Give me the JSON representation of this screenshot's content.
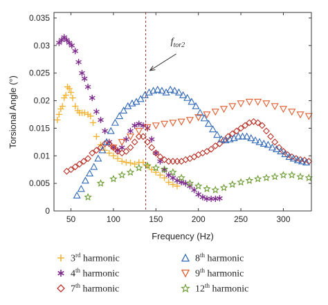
{
  "chart_data": {
    "type": "scatter",
    "xlabel": "Frequency (Hz)",
    "ylabel": "Torsional Angle (°)",
    "xlim": [
      30,
      333
    ],
    "ylim": [
      0,
      0.036
    ],
    "xticks": [
      "50",
      "100",
      "150",
      "200",
      "250",
      "300"
    ],
    "yticks": [
      "0",
      "0.005",
      "0.01",
      "0.015",
      "0.02",
      "0.025",
      "0.03",
      "0.035"
    ],
    "grid": false,
    "annotation": {
      "text": "f",
      "subscript": "tor2",
      "x": 138
    },
    "legend_position": "below",
    "series": [
      {
        "order": "3",
        "suffix": "rd",
        "label_rest": " harmonic",
        "marker": "plus",
        "color": "#f2b233",
        "points": [
          [
            34,
            0.0165
          ],
          [
            36,
            0.0175
          ],
          [
            38,
            0.0185
          ],
          [
            40,
            0.019
          ],
          [
            42,
            0.0205
          ],
          [
            44,
            0.021
          ],
          [
            46,
            0.0225
          ],
          [
            48,
            0.0222
          ],
          [
            50,
            0.0215
          ],
          [
            52,
            0.0205
          ],
          [
            55,
            0.019
          ],
          [
            58,
            0.0182
          ],
          [
            60,
            0.0178
          ],
          [
            63,
            0.0178
          ],
          [
            66,
            0.0178
          ],
          [
            70,
            0.0175
          ],
          [
            73,
            0.0172
          ],
          [
            76,
            0.016
          ],
          [
            80,
            0.0135
          ],
          [
            85,
            0.012
          ],
          [
            90,
            0.011
          ],
          [
            95,
            0.0105
          ],
          [
            100,
            0.01
          ],
          [
            105,
            0.0095
          ],
          [
            110,
            0.009
          ],
          [
            115,
            0.0088
          ],
          [
            120,
            0.0087
          ],
          [
            125,
            0.0085
          ],
          [
            130,
            0.0088
          ],
          [
            135,
            0.0088
          ],
          [
            140,
            0.0082
          ],
          [
            145,
            0.0075
          ],
          [
            150,
            0.007
          ],
          [
            155,
            0.0065
          ],
          [
            160,
            0.006
          ],
          [
            165,
            0.0052
          ],
          [
            170,
            0.0048
          ],
          [
            175,
            0.0045
          ]
        ]
      },
      {
        "order": "4",
        "suffix": "th",
        "label_rest": " harmonic",
        "marker": "asterisk",
        "color": "#7d2b8b",
        "points": [
          [
            36,
            0.0305
          ],
          [
            39,
            0.031
          ],
          [
            42,
            0.0315
          ],
          [
            45,
            0.031
          ],
          [
            48,
            0.0305
          ],
          [
            51,
            0.03
          ],
          [
            55,
            0.029
          ],
          [
            59,
            0.027
          ],
          [
            63,
            0.025
          ],
          [
            66,
            0.024
          ],
          [
            70,
            0.0225
          ],
          [
            75,
            0.0205
          ],
          [
            80,
            0.018
          ],
          [
            85,
            0.0165
          ],
          [
            90,
            0.0145
          ],
          [
            95,
            0.0125
          ],
          [
            100,
            0.0115
          ],
          [
            105,
            0.011
          ],
          [
            110,
            0.0115
          ],
          [
            115,
            0.013
          ],
          [
            120,
            0.0145
          ],
          [
            125,
            0.0155
          ],
          [
            130,
            0.0158
          ],
          [
            135,
            0.0155
          ],
          [
            140,
            0.015
          ],
          [
            145,
            0.013
          ],
          [
            150,
            0.0105
          ],
          [
            155,
            0.009
          ],
          [
            160,
            0.0075
          ],
          [
            165,
            0.0065
          ],
          [
            170,
            0.006
          ],
          [
            175,
            0.0055
          ],
          [
            180,
            0.0052
          ],
          [
            185,
            0.005
          ],
          [
            190,
            0.0045
          ],
          [
            195,
            0.0038
          ],
          [
            200,
            0.003
          ],
          [
            205,
            0.0025
          ],
          [
            210,
            0.0022
          ],
          [
            215,
            0.0022
          ],
          [
            220,
            0.0022
          ],
          [
            225,
            0.0023
          ]
        ]
      },
      {
        "order": "7",
        "suffix": "th",
        "label_rest": " harmonic",
        "marker": "diamond",
        "color": "#b83026",
        "points": [
          [
            45,
            0.0072
          ],
          [
            50,
            0.0075
          ],
          [
            55,
            0.008
          ],
          [
            60,
            0.0085
          ],
          [
            65,
            0.009
          ],
          [
            70,
            0.0095
          ],
          [
            75,
            0.0105
          ],
          [
            80,
            0.011
          ],
          [
            85,
            0.0115
          ],
          [
            90,
            0.0122
          ],
          [
            95,
            0.0122
          ],
          [
            100,
            0.0115
          ],
          [
            105,
            0.0108
          ],
          [
            110,
            0.0105
          ],
          [
            115,
            0.0108
          ],
          [
            120,
            0.0115
          ],
          [
            125,
            0.0125
          ],
          [
            130,
            0.0135
          ],
          [
            135,
            0.0135
          ],
          [
            140,
            0.0125
          ],
          [
            145,
            0.0115
          ],
          [
            150,
            0.0105
          ],
          [
            155,
            0.0098
          ],
          [
            160,
            0.0093
          ],
          [
            165,
            0.009
          ],
          [
            170,
            0.009
          ],
          [
            175,
            0.009
          ],
          [
            180,
            0.009
          ],
          [
            185,
            0.0093
          ],
          [
            190,
            0.0095
          ],
          [
            195,
            0.0098
          ],
          [
            200,
            0.0102
          ],
          [
            205,
            0.0105
          ],
          [
            210,
            0.0108
          ],
          [
            215,
            0.0112
          ],
          [
            220,
            0.0118
          ],
          [
            225,
            0.0122
          ],
          [
            230,
            0.0128
          ],
          [
            235,
            0.0135
          ],
          [
            240,
            0.014
          ],
          [
            245,
            0.0145
          ],
          [
            250,
            0.015
          ],
          [
            255,
            0.0155
          ],
          [
            260,
            0.016
          ],
          [
            265,
            0.0162
          ],
          [
            270,
            0.016
          ],
          [
            275,
            0.0155
          ],
          [
            280,
            0.0145
          ],
          [
            285,
            0.0135
          ],
          [
            290,
            0.0125
          ],
          [
            295,
            0.0115
          ],
          [
            300,
            0.0108
          ],
          [
            305,
            0.0102
          ],
          [
            310,
            0.0098
          ],
          [
            315,
            0.0095
          ],
          [
            320,
            0.0093
          ],
          [
            325,
            0.0092
          ],
          [
            330,
            0.009
          ]
        ]
      },
      {
        "order": "8",
        "suffix": "th",
        "label_rest": " harmonic",
        "marker": "triangle-up",
        "color": "#2e66b6",
        "points": [
          [
            57,
            0.0028
          ],
          [
            62,
            0.004
          ],
          [
            67,
            0.0055
          ],
          [
            72,
            0.0068
          ],
          [
            77,
            0.008
          ],
          [
            82,
            0.0095
          ],
          [
            87,
            0.011
          ],
          [
            92,
            0.0125
          ],
          [
            97,
            0.0145
          ],
          [
            102,
            0.016
          ],
          [
            107,
            0.0172
          ],
          [
            112,
            0.0182
          ],
          [
            117,
            0.019
          ],
          [
            122,
            0.0195
          ],
          [
            127,
            0.0198
          ],
          [
            132,
            0.0203
          ],
          [
            137,
            0.021
          ],
          [
            142,
            0.0215
          ],
          [
            147,
            0.0218
          ],
          [
            152,
            0.022
          ],
          [
            157,
            0.0218
          ],
          [
            162,
            0.0215
          ],
          [
            167,
            0.022
          ],
          [
            172,
            0.0218
          ],
          [
            177,
            0.0215
          ],
          [
            182,
            0.021
          ],
          [
            187,
            0.0205
          ],
          [
            192,
            0.0198
          ],
          [
            197,
            0.019
          ],
          [
            202,
            0.0178
          ],
          [
            207,
            0.0168
          ],
          [
            212,
            0.0158
          ],
          [
            217,
            0.0148
          ],
          [
            222,
            0.0138
          ],
          [
            227,
            0.013
          ],
          [
            232,
            0.0128
          ],
          [
            237,
            0.013
          ],
          [
            242,
            0.0132
          ],
          [
            247,
            0.0135
          ],
          [
            252,
            0.0135
          ],
          [
            257,
            0.0135
          ],
          [
            262,
            0.0132
          ],
          [
            267,
            0.0128
          ],
          [
            272,
            0.0125
          ],
          [
            277,
            0.0122
          ],
          [
            282,
            0.012
          ],
          [
            287,
            0.0115
          ],
          [
            292,
            0.0112
          ],
          [
            297,
            0.0108
          ],
          [
            302,
            0.0103
          ],
          [
            307,
            0.0098
          ],
          [
            312,
            0.0095
          ],
          [
            317,
            0.0092
          ],
          [
            322,
            0.009
          ],
          [
            327,
            0.0088
          ]
        ]
      },
      {
        "order": "9",
        "suffix": "th",
        "label_rest": " harmonic",
        "marker": "triangle-down",
        "color": "#e05a2b",
        "points": [
          [
            100,
            0.0115
          ],
          [
            110,
            0.0125
          ],
          [
            120,
            0.0135
          ],
          [
            130,
            0.0145
          ],
          [
            140,
            0.0152
          ],
          [
            150,
            0.0155
          ],
          [
            160,
            0.0158
          ],
          [
            170,
            0.016
          ],
          [
            180,
            0.0162
          ],
          [
            190,
            0.0165
          ],
          [
            200,
            0.017
          ],
          [
            210,
            0.0175
          ],
          [
            220,
            0.018
          ],
          [
            230,
            0.0185
          ],
          [
            240,
            0.019
          ],
          [
            250,
            0.0195
          ],
          [
            260,
            0.0198
          ],
          [
            270,
            0.0198
          ],
          [
            280,
            0.0195
          ],
          [
            290,
            0.019
          ],
          [
            300,
            0.0185
          ],
          [
            310,
            0.018
          ],
          [
            320,
            0.0175
          ],
          [
            330,
            0.0172
          ]
        ]
      },
      {
        "order": "12",
        "suffix": "th",
        "label_rest": " harmonic",
        "marker": "star",
        "color": "#6a9a2e",
        "points": [
          [
            70,
            0.0025
          ],
          [
            85,
            0.005
          ],
          [
            100,
            0.0058
          ],
          [
            110,
            0.0065
          ],
          [
            120,
            0.007
          ],
          [
            130,
            0.0078
          ],
          [
            140,
            0.0082
          ],
          [
            150,
            0.0078
          ],
          [
            160,
            0.0075
          ],
          [
            170,
            0.007
          ],
          [
            180,
            0.006
          ],
          [
            190,
            0.005
          ],
          [
            200,
            0.0045
          ],
          [
            210,
            0.004
          ],
          [
            220,
            0.0038
          ],
          [
            230,
            0.0042
          ],
          [
            240,
            0.0048
          ],
          [
            250,
            0.0052
          ],
          [
            260,
            0.0055
          ],
          [
            270,
            0.0058
          ],
          [
            280,
            0.006
          ],
          [
            290,
            0.0062
          ],
          [
            300,
            0.0065
          ],
          [
            310,
            0.0065
          ],
          [
            320,
            0.0062
          ],
          [
            330,
            0.006
          ]
        ]
      }
    ]
  }
}
